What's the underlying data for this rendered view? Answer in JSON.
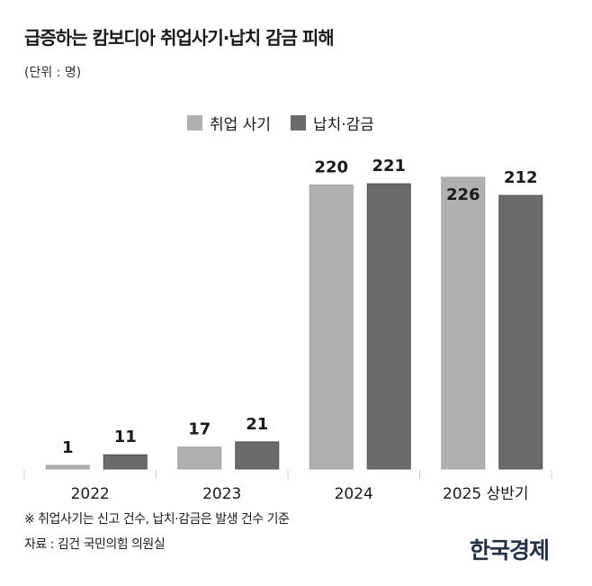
{
  "chart_data": {
    "type": "bar",
    "title": "급증하는 캄보디아 취업사기·납치 감금 피해",
    "unit_label": "(단위 : 명)",
    "categories": [
      "2022",
      "2023",
      "2024",
      "2025 상반기"
    ],
    "series": [
      {
        "name": "취업 사기",
        "values": [
          1,
          17,
          220,
          226
        ],
        "color": "#b0b0b0"
      },
      {
        "name": "납치·감금",
        "values": [
          11,
          21,
          221,
          212
        ],
        "color": "#6b6b6b"
      }
    ],
    "ylim": [
      0,
      226
    ],
    "grid": false,
    "legend": "top-center",
    "data_labels": true
  },
  "footnote": "※ 취업사기는 신고 건수, 납치·감금은 발생 건수 기준",
  "source": "자료 : 김건 국민의힘 의원실",
  "logo": "한국경제"
}
